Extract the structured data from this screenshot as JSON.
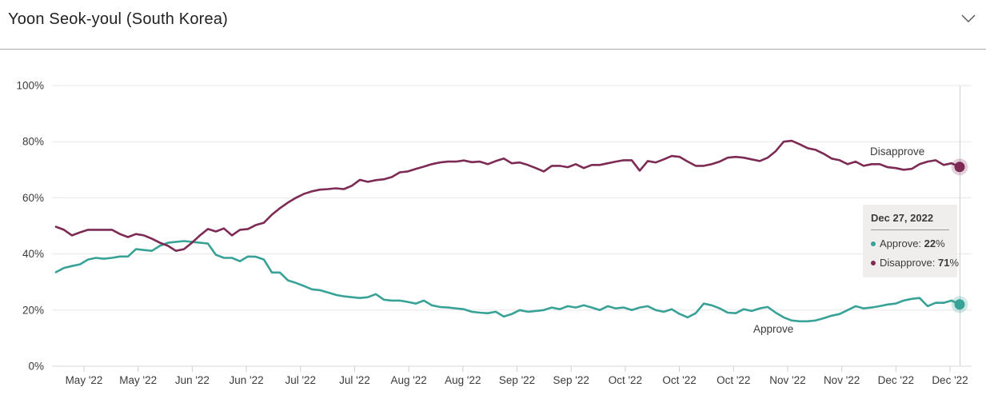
{
  "header": {
    "title": "Yoon Seok-youl (South Korea)",
    "dropdown_icon": "chevron-down"
  },
  "chart_data": {
    "type": "line",
    "title": "Yoon Seok-youl (South Korea)",
    "xlabel": "",
    "ylabel": "",
    "ylim": [
      0,
      100
    ],
    "grid": "horizontal",
    "legend_position": "inline-end-labels",
    "y_tick_labels": [
      "0%",
      "20%",
      "40%",
      "60%",
      "80%",
      "100%"
    ],
    "y_tick_values": [
      0,
      20,
      40,
      60,
      80,
      100
    ],
    "x_tick_labels": [
      "May '22",
      "May '22",
      "Jun '22",
      "Jun '22",
      "Jul '22",
      "Jul '22",
      "Aug '22",
      "Aug '22",
      "Sep '22",
      "Sep '22",
      "Oct '22",
      "Oct '22",
      "Oct '22",
      "Nov '22",
      "Nov '22",
      "Dec '22",
      "Dec '22"
    ],
    "series": [
      {
        "name": "Approve",
        "color": "#38A296",
        "halo_color": "rgba(56,162,150,0.25)",
        "end_value_label": "22%",
        "values": [
          33.5,
          35.0,
          35.7,
          36.3,
          38.0,
          38.6,
          38.3,
          38.6,
          39.1,
          39.1,
          41.7,
          41.4,
          41.1,
          42.9,
          44.0,
          44.3,
          44.6,
          44.3,
          44.0,
          43.7,
          39.7,
          38.6,
          38.6,
          37.4,
          39.1,
          39.0,
          38.0,
          33.4,
          33.4,
          30.6,
          29.7,
          28.6,
          27.4,
          27.1,
          26.3,
          25.4,
          24.9,
          24.6,
          24.3,
          24.6,
          25.7,
          23.7,
          23.4,
          23.4,
          22.9,
          22.3,
          23.4,
          21.7,
          21.1,
          20.9,
          20.6,
          20.3,
          19.4,
          19.1,
          18.9,
          19.4,
          17.7,
          18.6,
          20.0,
          19.4,
          19.7,
          20.0,
          20.9,
          20.3,
          21.4,
          20.9,
          21.7,
          20.9,
          20.0,
          21.4,
          20.6,
          20.9,
          20.0,
          20.9,
          21.4,
          20.0,
          19.4,
          20.3,
          18.6,
          17.4,
          18.9,
          22.3,
          21.7,
          20.6,
          19.1,
          18.9,
          20.3,
          19.7,
          20.6,
          21.1,
          19.1,
          17.4,
          16.3,
          16.0,
          16.0,
          16.3,
          17.1,
          18.0,
          18.6,
          20.0,
          21.4,
          20.6,
          20.9,
          21.4,
          22.0,
          22.3,
          23.4,
          24.0,
          24.3,
          21.4,
          22.6,
          22.6,
          23.4,
          22.0
        ]
      },
      {
        "name": "Disapprove",
        "color": "#7D2A55",
        "halo_color": "rgba(125,42,85,0.22)",
        "end_value_label": "71%",
        "values": [
          49.7,
          48.6,
          46.6,
          47.7,
          48.6,
          48.6,
          48.6,
          48.6,
          47.1,
          46.0,
          47.1,
          46.6,
          45.4,
          44.0,
          42.9,
          41.1,
          41.7,
          44.0,
          46.6,
          48.9,
          48.0,
          49.1,
          46.6,
          48.6,
          48.9,
          50.3,
          51.1,
          54.0,
          56.3,
          58.3,
          60.0,
          61.4,
          62.3,
          62.9,
          63.1,
          63.4,
          63.1,
          64.3,
          66.4,
          65.7,
          66.3,
          66.6,
          67.4,
          69.1,
          69.4,
          70.3,
          71.1,
          72.0,
          72.6,
          72.9,
          72.9,
          73.3,
          72.7,
          72.9,
          72.0,
          73.1,
          74.0,
          72.3,
          72.6,
          71.7,
          70.6,
          69.4,
          71.4,
          71.4,
          70.9,
          72.0,
          70.6,
          71.7,
          71.7,
          72.3,
          72.9,
          73.4,
          73.4,
          69.7,
          73.1,
          72.6,
          73.7,
          74.9,
          74.6,
          72.9,
          71.4,
          71.4,
          72.0,
          72.9,
          74.3,
          74.6,
          74.3,
          73.7,
          73.1,
          74.3,
          76.6,
          80.0,
          80.3,
          79.1,
          77.7,
          77.1,
          75.7,
          74.0,
          73.4,
          72.0,
          72.9,
          71.4,
          72.0,
          72.0,
          70.9,
          70.6,
          70.0,
          70.3,
          72.0,
          72.9,
          73.4,
          71.7,
          72.3,
          71.0
        ]
      }
    ],
    "annotations": [
      {
        "text": "Disapprove",
        "series": "Disapprove"
      },
      {
        "text": "Approve",
        "series": "Approve"
      }
    ],
    "crosshair_date_index": "last"
  },
  "tooltip": {
    "date": "Dec 27, 2022",
    "rows": [
      {
        "name": "Approve",
        "prefix": "Approve: ",
        "value": "22",
        "suffix": "%",
        "color": "#38A296"
      },
      {
        "name": "Disapprove",
        "prefix": "Disapprove: ",
        "value": "71",
        "suffix": "%",
        "color": "#7D2A55"
      }
    ]
  },
  "colors": {
    "approve": "#38A296",
    "disapprove": "#7D2A55",
    "gridline": "#e7e7e7",
    "axis_line": "#d6dade",
    "crosshair": "#cfd4d8",
    "text": "#3b3b3b"
  }
}
